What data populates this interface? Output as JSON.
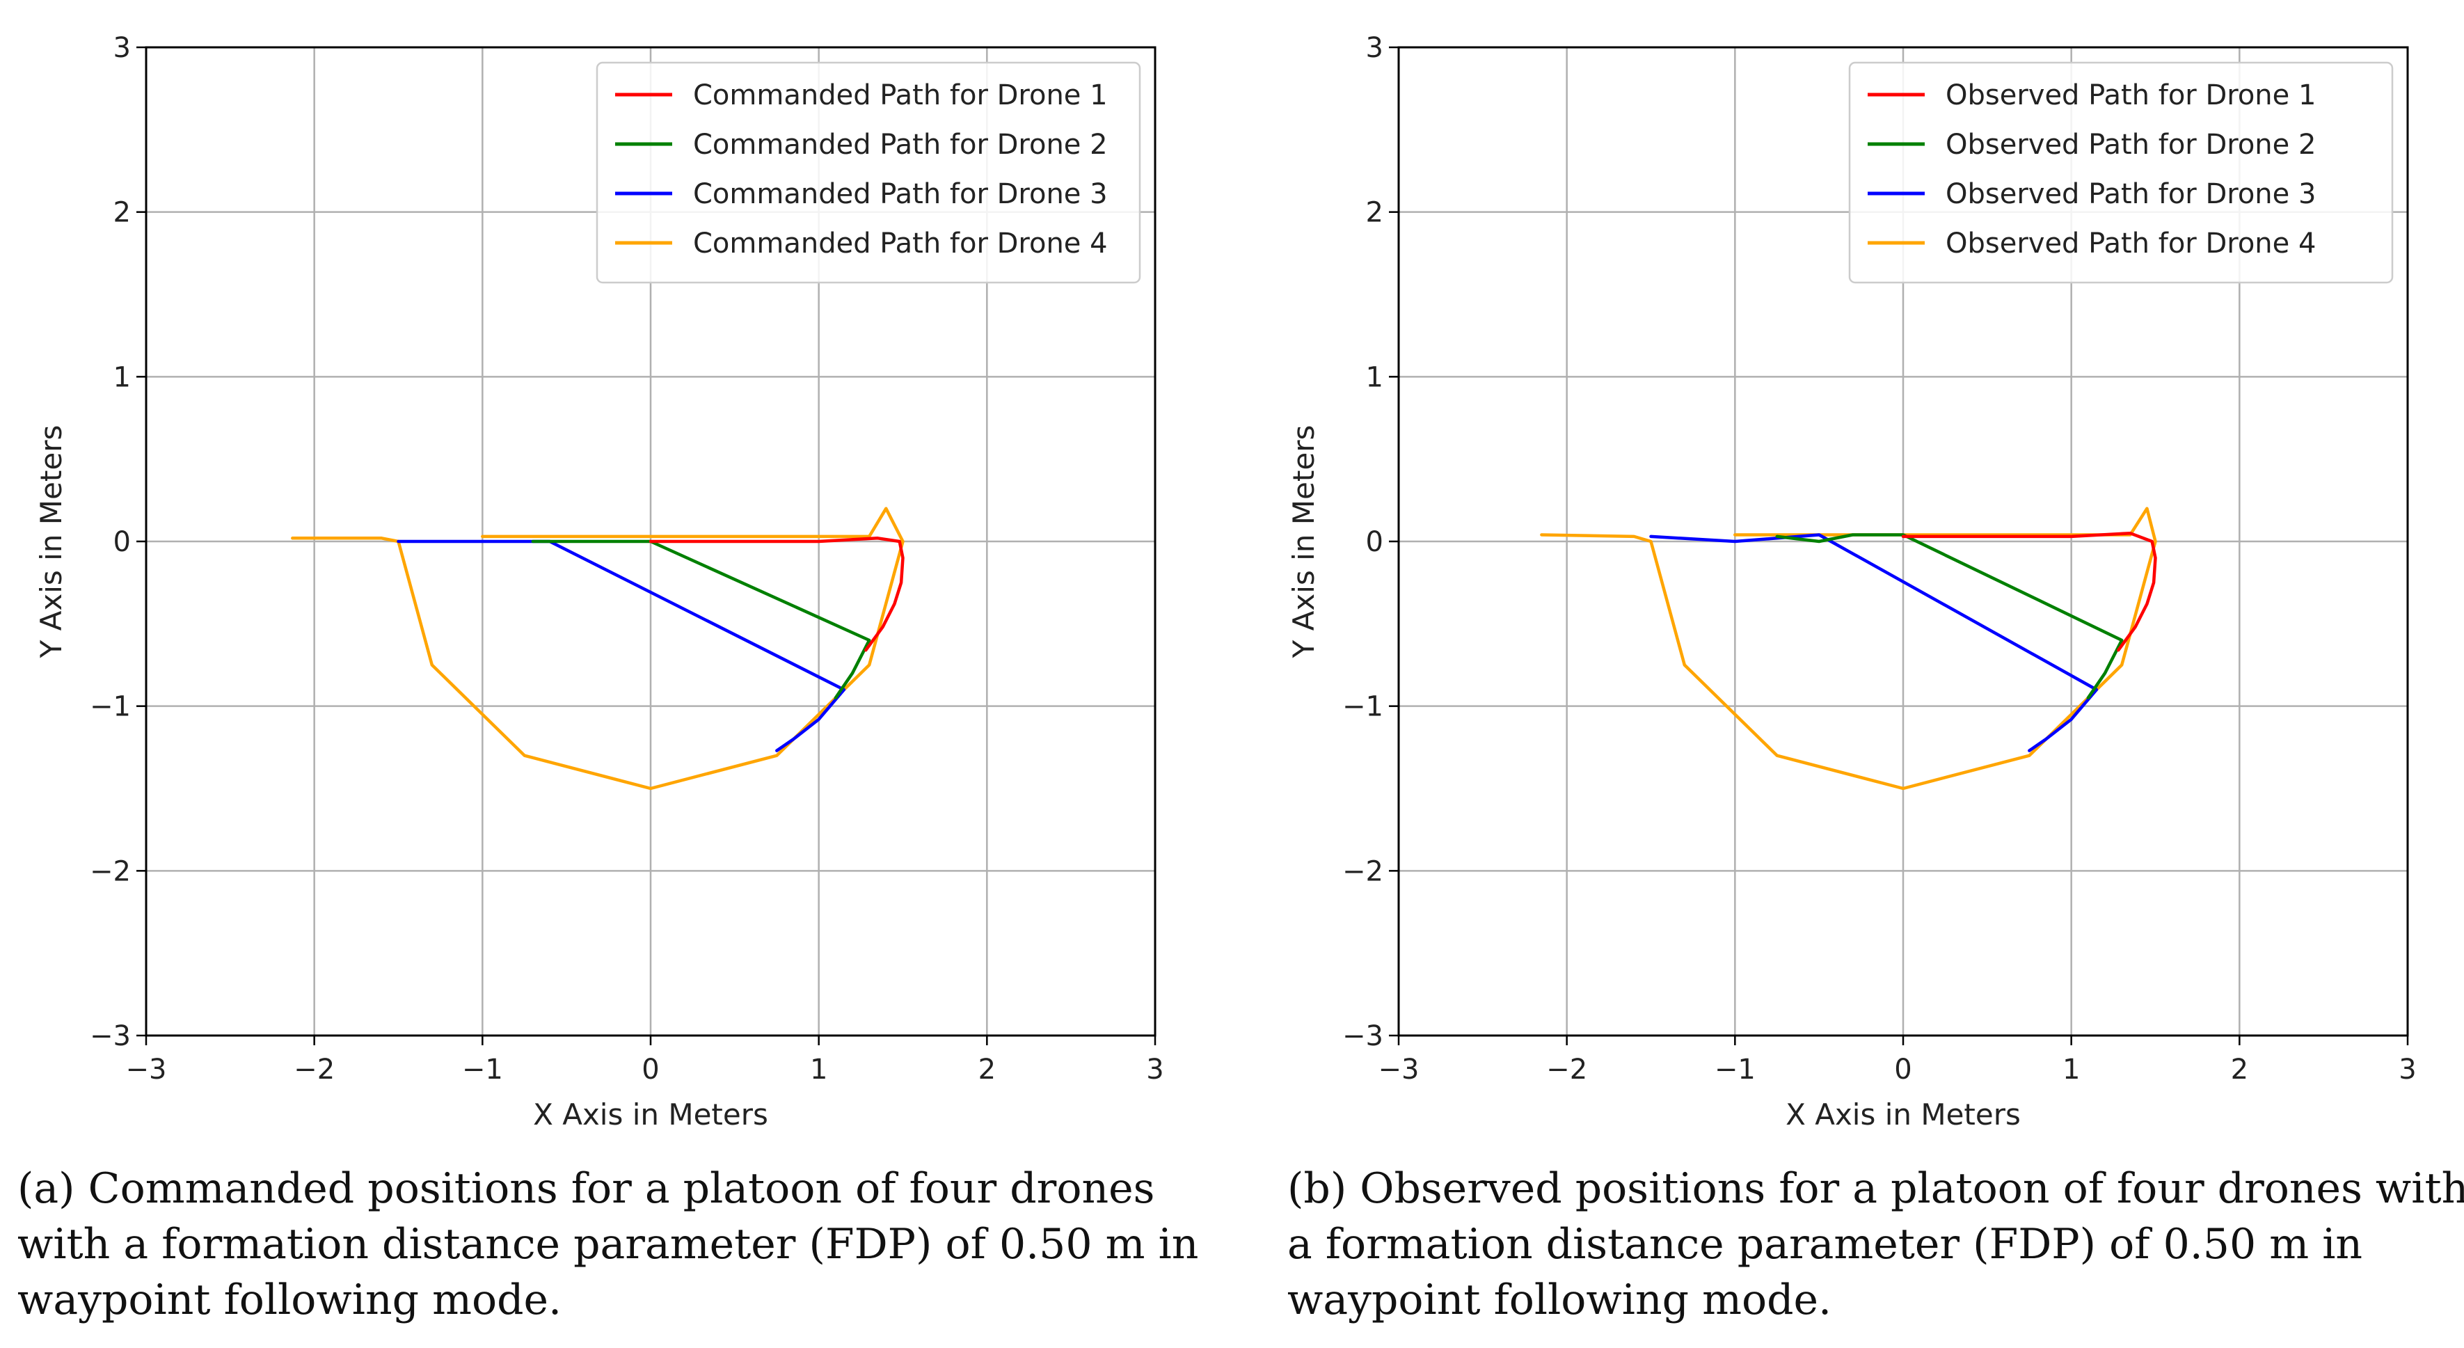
{
  "chart_data": [
    {
      "type": "line",
      "panel": "a",
      "title": "",
      "xlabel": "X Axis in Meters",
      "ylabel": "Y Axis in Meters",
      "xlim": [
        -3,
        3
      ],
      "ylim": [
        -3,
        3
      ],
      "xticks": [
        -3,
        -2,
        -1,
        0,
        1,
        2,
        3
      ],
      "yticks": [
        -3,
        -2,
        -1,
        0,
        1,
        2,
        3
      ],
      "xtick_labels": [
        "−3",
        "−2",
        "−1",
        "0",
        "1",
        "2",
        "3"
      ],
      "ytick_labels": [
        "−3",
        "−2",
        "−1",
        "0",
        "1",
        "2",
        "3"
      ],
      "grid": true,
      "legend_position": "top-right",
      "caption": "(a)  Commanded positions for a platoon of four drones with a formation distance parameter (FDP) of 0.50 m in waypoint following mode.",
      "series": [
        {
          "name": "Commanded Path for Drone 1",
          "color": "#ff0000",
          "x": [
            0.0,
            0.5,
            1.0,
            1.35,
            1.48,
            1.5,
            1.49,
            1.45,
            1.38,
            1.28
          ],
          "y": [
            0.0,
            0.0,
            0.0,
            0.02,
            0.0,
            -0.1,
            -0.25,
            -0.38,
            -0.52,
            -0.66
          ]
        },
        {
          "name": "Commanded Path for Drone 2",
          "color": "#008000",
          "x": [
            -0.7,
            -0.3,
            0.0,
            1.3,
            1.2,
            1.1
          ],
          "y": [
            0.0,
            0.0,
            0.0,
            -0.6,
            -0.8,
            -0.95
          ]
        },
        {
          "name": "Commanded Path for Drone 3",
          "color": "#0000ff",
          "x": [
            -1.5,
            -1.1,
            -0.6,
            1.15,
            1.0,
            0.85,
            0.75
          ],
          "y": [
            0.0,
            0.0,
            0.0,
            -0.9,
            -1.08,
            -1.2,
            -1.27
          ]
        },
        {
          "name": "Commanded Path for Drone 4",
          "color": "#ffa500",
          "x": [
            -2.13,
            -1.6,
            -1.5,
            -1.3,
            -0.75,
            0.0,
            0.75,
            1.3,
            1.5,
            1.4,
            1.3,
            1.0,
            0.0,
            -1.0
          ],
          "y": [
            0.02,
            0.02,
            0.0,
            -0.75,
            -1.3,
            -1.5,
            -1.3,
            -0.75,
            0.0,
            0.2,
            0.03,
            0.03,
            0.03,
            0.03
          ]
        }
      ]
    },
    {
      "type": "line",
      "panel": "b",
      "title": "",
      "xlabel": "X Axis in Meters",
      "ylabel": "Y Axis in Meters",
      "xlim": [
        -3,
        3
      ],
      "ylim": [
        -3,
        3
      ],
      "xticks": [
        -3,
        -2,
        -1,
        0,
        1,
        2,
        3
      ],
      "yticks": [
        -3,
        -2,
        -1,
        0,
        1,
        2,
        3
      ],
      "xtick_labels": [
        "−3",
        "−2",
        "−1",
        "0",
        "1",
        "2",
        "3"
      ],
      "ytick_labels": [
        "−3",
        "−2",
        "−1",
        "0",
        "1",
        "2",
        "3"
      ],
      "grid": true,
      "legend_position": "top-right",
      "caption": "(b)  Observed positions for a platoon of four drones with a formation distance parameter (FDP) of 0.50 m in waypoint following mode.",
      "series": [
        {
          "name": "Observed Path for Drone 1",
          "color": "#ff0000",
          "x": [
            0.0,
            0.5,
            1.0,
            1.35,
            1.48,
            1.5,
            1.49,
            1.45,
            1.38,
            1.28
          ],
          "y": [
            0.03,
            0.03,
            0.03,
            0.05,
            0.0,
            -0.1,
            -0.25,
            -0.38,
            -0.52,
            -0.66
          ]
        },
        {
          "name": "Observed Path for Drone 2",
          "color": "#008000",
          "x": [
            -0.75,
            -0.5,
            -0.3,
            0.0,
            1.3,
            1.2,
            1.1
          ],
          "y": [
            0.03,
            0.0,
            0.04,
            0.04,
            -0.6,
            -0.8,
            -0.95
          ]
        },
        {
          "name": "Observed Path for Drone 3",
          "color": "#0000ff",
          "x": [
            -1.5,
            -1.0,
            -0.5,
            1.15,
            1.0,
            0.85,
            0.75
          ],
          "y": [
            0.03,
            0.0,
            0.04,
            -0.9,
            -1.08,
            -1.2,
            -1.27
          ]
        },
        {
          "name": "Observed Path for Drone 4",
          "color": "#ffa500",
          "x": [
            -2.15,
            -1.6,
            -1.5,
            -1.3,
            -0.75,
            0.0,
            0.75,
            1.3,
            1.5,
            1.45,
            1.35,
            1.0,
            0.0,
            -1.0
          ],
          "y": [
            0.04,
            0.03,
            0.0,
            -0.75,
            -1.3,
            -1.5,
            -1.3,
            -0.75,
            0.0,
            0.2,
            0.04,
            0.04,
            0.04,
            0.04
          ]
        }
      ]
    }
  ]
}
